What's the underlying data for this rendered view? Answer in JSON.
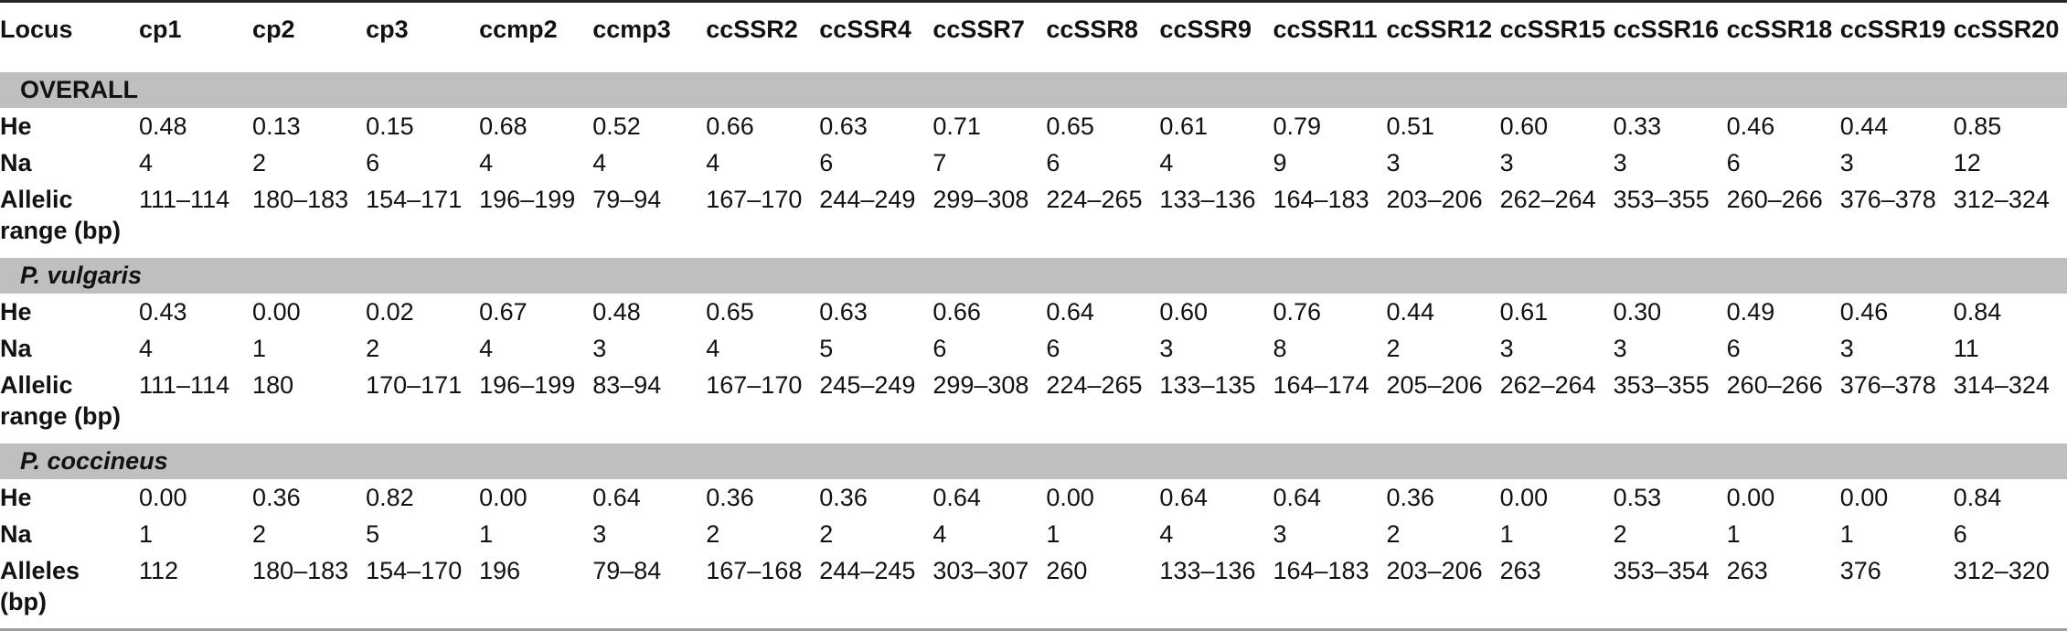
{
  "colors": {
    "section_band": "#bfbfbf",
    "top_rule": "#262626",
    "header_rule": "#4d4d4d",
    "bottom_rule": "#9e9e9e",
    "text": "#121212"
  },
  "table": {
    "columns": [
      "Locus",
      "cp1",
      "cp2",
      "cp3",
      "ccmp2",
      "ccmp3",
      "ccSSR2",
      "ccSSR4",
      "ccSSR7",
      "ccSSR8",
      "ccSSR9",
      "ccSSR11",
      "ccSSR12",
      "ccSSR15",
      "ccSSR16",
      "ccSSR18",
      "ccSSR19",
      "ccSSR20"
    ],
    "sections": [
      {
        "title": "OVERALL",
        "italic": false,
        "rows": [
          {
            "label": "He",
            "values": [
              "0.48",
              "0.13",
              "0.15",
              "0.68",
              "0.52",
              "0.66",
              "0.63",
              "0.71",
              "0.65",
              "0.61",
              "0.79",
              "0.51",
              "0.60",
              "0.33",
              "0.46",
              "0.44",
              "0.85"
            ]
          },
          {
            "label": "Na",
            "values": [
              "4",
              "2",
              "6",
              "4",
              "4",
              "4",
              "6",
              "7",
              "6",
              "4",
              "9",
              "3",
              "3",
              "3",
              "6",
              "3",
              "12"
            ]
          },
          {
            "label": "Allelic range (bp)",
            "values": [
              "111–114",
              "180–183",
              "154–171",
              "196–199",
              "79–94",
              "167–170",
              "244–249",
              "299–308",
              "224–265",
              "133–136",
              "164–183",
              "203–206",
              "262–264",
              "353–355",
              "260–266",
              "376–378",
              "312–324"
            ]
          }
        ]
      },
      {
        "title": "P. vulgaris",
        "italic": true,
        "rows": [
          {
            "label": "He",
            "values": [
              "0.43",
              "0.00",
              "0.02",
              "0.67",
              "0.48",
              "0.65",
              "0.63",
              "0.66",
              "0.64",
              "0.60",
              "0.76",
              "0.44",
              "0.61",
              "0.30",
              "0.49",
              "0.46",
              "0.84"
            ]
          },
          {
            "label": "Na",
            "values": [
              "4",
              "1",
              "2",
              "4",
              "3",
              "4",
              "5",
              "6",
              "6",
              "3",
              "8",
              "2",
              "3",
              "3",
              "6",
              "3",
              "11"
            ]
          },
          {
            "label": "Allelic range (bp)",
            "values": [
              "111–114",
              "180",
              "170–171",
              "196–199",
              "83–94",
              "167–170",
              "245–249",
              "299–308",
              "224–265",
              "133–135",
              "164–174",
              "205–206",
              "262–264",
              "353–355",
              "260–266",
              "376–378",
              "314–324"
            ]
          }
        ]
      },
      {
        "title": "P. coccineus",
        "italic": true,
        "rows": [
          {
            "label": "He",
            "values": [
              "0.00",
              "0.36",
              "0.82",
              "0.00",
              "0.64",
              "0.36",
              "0.36",
              "0.64",
              "0.00",
              "0.64",
              "0.64",
              "0.36",
              "0.00",
              "0.53",
              "0.00",
              "0.00",
              "0.84"
            ]
          },
          {
            "label": "Na",
            "values": [
              "1",
              "2",
              "5",
              "1",
              "3",
              "2",
              "2",
              "4",
              "1",
              "4",
              "3",
              "2",
              "1",
              "2",
              "1",
              "1",
              "6"
            ]
          },
          {
            "label": "Alleles (bp)",
            "values": [
              "112",
              "180–183",
              "154–170",
              "196",
              "79–84",
              "167–168",
              "244–245",
              "303–307",
              "260",
              "133–136",
              "164–183",
              "203–206",
              "263",
              "353–354",
              "263",
              "376",
              "312–320"
            ]
          }
        ]
      }
    ]
  }
}
